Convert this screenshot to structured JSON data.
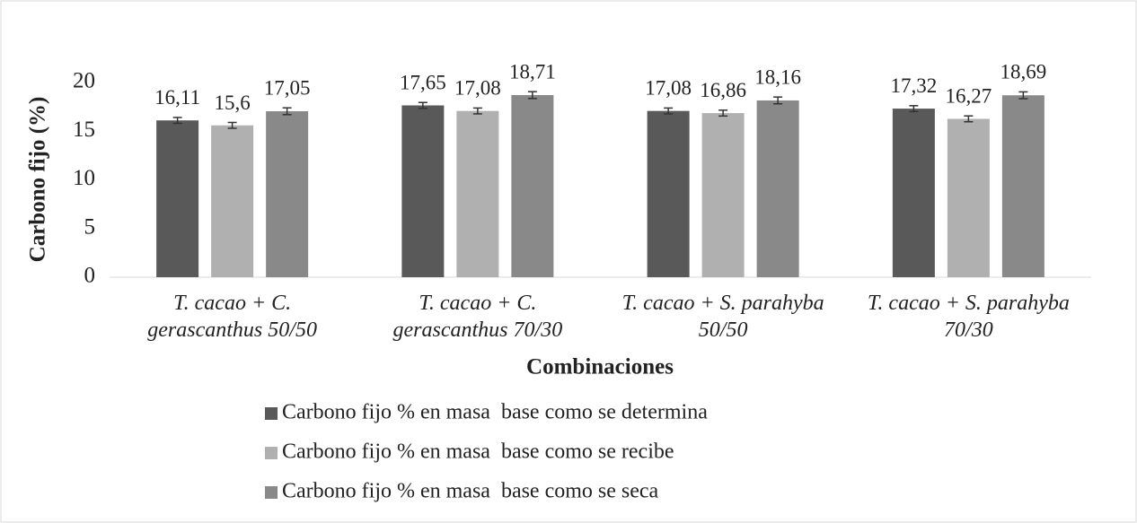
{
  "chart_data": {
    "type": "bar",
    "y_label": "Carbono fijo (%)",
    "x_label": "Combinaciones",
    "categories": [
      "T. cacao + C. gerascanthus 50/50",
      "T. cacao + C. gerascanthus 70/30",
      "T. cacao + S. parahyba 50/50",
      "T. cacao + S. parahyba 70/30"
    ],
    "series": [
      {
        "name": "Carbono fijo % en masa  base como se determina",
        "color": "#595959",
        "values": [
          16.11,
          17.65,
          17.08,
          17.32
        ],
        "value_labels": [
          "16,11",
          "17,65",
          "17,08",
          "17,32"
        ],
        "errors": [
          0.3,
          0.3,
          0.3,
          0.3
        ]
      },
      {
        "name": "Carbono fijo % en masa  base como se recibe",
        "color": "#b0b0b0",
        "values": [
          15.6,
          17.08,
          16.86,
          16.27
        ],
        "value_labels": [
          "15,6",
          "17,08",
          "16,86",
          "16,27"
        ],
        "errors": [
          0.3,
          0.3,
          0.3,
          0.3
        ]
      },
      {
        "name": "Carbono fijo % en masa  base como se seca",
        "color": "#898989",
        "values": [
          17.05,
          18.71,
          18.16,
          18.69
        ],
        "value_labels": [
          "17,05",
          "18,71",
          "18,16",
          "18,69"
        ],
        "errors": [
          0.35,
          0.35,
          0.35,
          0.35
        ]
      }
    ],
    "ylim": [
      0,
      20
    ],
    "yticks": [
      0,
      5,
      10,
      15,
      20
    ],
    "grid": false,
    "legend": "bottom"
  }
}
